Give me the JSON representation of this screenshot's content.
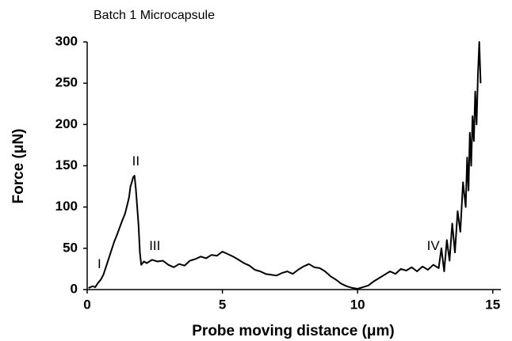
{
  "chart_data": {
    "type": "line",
    "title": "Batch 1 Microcapsule",
    "x_label": "Probe moving distance (μm)",
    "y_label": "Force (μN)",
    "xlim": [
      0,
      15.3
    ],
    "ylim": [
      0,
      300
    ],
    "xticks": [
      0,
      5,
      10,
      15
    ],
    "yticks": [
      0,
      50,
      100,
      150,
      200,
      250,
      300
    ],
    "grid": false,
    "annotations": [
      {
        "text": "I",
        "x": 0.45,
        "y": 30
      },
      {
        "text": "II",
        "x": 1.8,
        "y": 155
      },
      {
        "text": "III",
        "x": 2.5,
        "y": 52
      },
      {
        "text": "IV",
        "x": 12.8,
        "y": 52
      }
    ],
    "series": [
      {
        "name": "Batch 1 Microcapsule",
        "color": "#000000",
        "x": [
          0.05,
          0.2,
          0.3,
          0.4,
          0.5,
          0.6,
          0.7,
          0.8,
          0.9,
          1.0,
          1.1,
          1.2,
          1.3,
          1.4,
          1.5,
          1.55,
          1.6,
          1.65,
          1.7,
          1.75,
          1.8,
          1.85,
          1.9,
          1.95,
          2.0,
          2.1,
          2.2,
          2.4,
          2.6,
          2.8,
          3.0,
          3.2,
          3.4,
          3.6,
          3.8,
          4.0,
          4.2,
          4.4,
          4.6,
          4.8,
          5.0,
          5.2,
          5.4,
          5.6,
          5.8,
          6.0,
          6.2,
          6.4,
          6.6,
          6.8,
          7.0,
          7.2,
          7.4,
          7.6,
          7.8,
          8.0,
          8.2,
          8.4,
          8.6,
          8.8,
          9.0,
          9.2,
          9.4,
          9.6,
          9.8,
          10.0,
          10.2,
          10.4,
          10.6,
          10.8,
          11.0,
          11.2,
          11.4,
          11.6,
          11.8,
          12.0,
          12.2,
          12.4,
          12.6,
          12.8,
          13.0,
          13.1,
          13.2,
          13.3,
          13.4,
          13.5,
          13.6,
          13.7,
          13.8,
          13.9,
          14.0,
          14.05,
          14.1,
          14.15,
          14.2,
          14.25,
          14.3,
          14.35,
          14.4,
          14.45,
          14.5,
          14.55
        ],
        "values": [
          2,
          4,
          3,
          8,
          12,
          18,
          28,
          38,
          48,
          58,
          66,
          75,
          84,
          92,
          105,
          112,
          125,
          130,
          136,
          138,
          122,
          100,
          78,
          45,
          30,
          34,
          32,
          36,
          34,
          35,
          30,
          27,
          31,
          29,
          35,
          37,
          40,
          38,
          42,
          41,
          46,
          43,
          40,
          36,
          32,
          29,
          24,
          22,
          19,
          18,
          17,
          20,
          22,
          19,
          24,
          28,
          31,
          27,
          26,
          22,
          16,
          12,
          7,
          4,
          2,
          1,
          3,
          5,
          10,
          14,
          18,
          22,
          19,
          25,
          23,
          27,
          22,
          28,
          24,
          30,
          26,
          50,
          22,
          60,
          35,
          80,
          45,
          95,
          70,
          130,
          100,
          160,
          120,
          190,
          150,
          210,
          180,
          240,
          200,
          260,
          300,
          250
        ]
      }
    ]
  }
}
